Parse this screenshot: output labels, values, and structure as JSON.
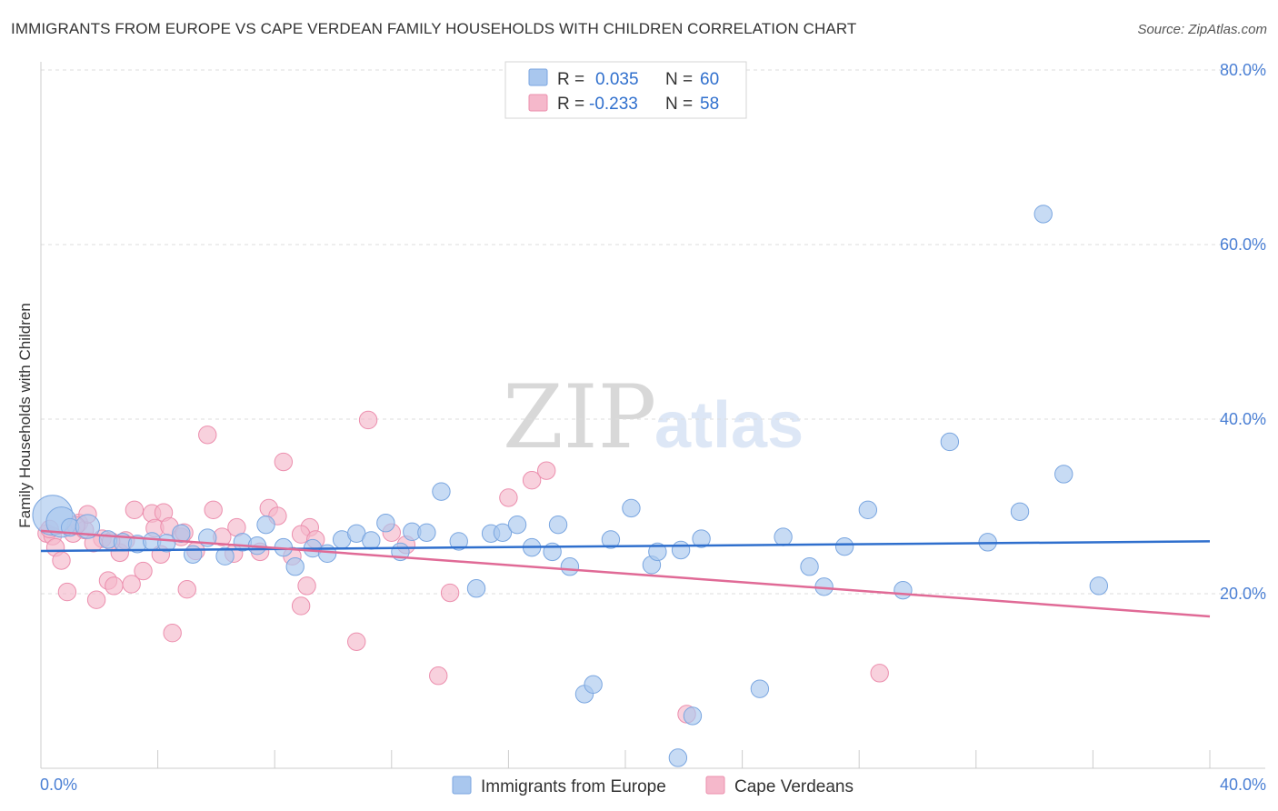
{
  "header": {
    "title": "IMMIGRANTS FROM EUROPE VS CAPE VERDEAN FAMILY HOUSEHOLDS WITH CHILDREN CORRELATION CHART",
    "source": "Source: ZipAtlas.com"
  },
  "watermark": {
    "zip": "ZIP",
    "atlas": "atlas"
  },
  "colors": {
    "blue_fill": "#a9c7ee",
    "blue_stroke": "#7aa6e0",
    "blue_line": "#2f6fcd",
    "pink_fill": "#f5b8cb",
    "pink_stroke": "#ec8fae",
    "pink_line": "#e06a96",
    "axis_text": "#4a7fd4",
    "grid": "#dddddd"
  },
  "stats_legend": {
    "rows": [
      {
        "r_label": "R =",
        "r_value": "0.035",
        "n_label": "N =",
        "n_value": "60"
      },
      {
        "r_label": "R =",
        "r_value": "-0.233",
        "n_label": "N =",
        "n_value": "58"
      }
    ]
  },
  "chart_data": {
    "type": "scatter",
    "title": "IMMIGRANTS FROM EUROPE VS CAPE VERDEAN FAMILY HOUSEHOLDS WITH CHILDREN CORRELATION CHART",
    "xlabel": "",
    "ylabel": "Family Households with Children",
    "xlim": [
      0,
      40
    ],
    "ylim": [
      0,
      80
    ],
    "x_tick_labels": [
      "0.0%",
      "40.0%"
    ],
    "y_ticks": [
      20,
      40,
      60,
      80
    ],
    "y_tick_labels": [
      "20.0%",
      "40.0%",
      "60.0%",
      "80.0%"
    ],
    "legend": [
      "Immigrants from Europe",
      "Cape Verdeans"
    ],
    "series": [
      {
        "name": "Immigrants from Europe",
        "r": 0.035,
        "n": 60,
        "trend": {
          "x": [
            0,
            40
          ],
          "y": [
            24.9,
            26.0
          ]
        },
        "points": [
          [
            0.4,
            29.0,
            24
          ],
          [
            0.7,
            28.2,
            18
          ],
          [
            1.0,
            27.6,
            10
          ],
          [
            1.6,
            27.7,
            14
          ],
          [
            2.3,
            26.2,
            10
          ],
          [
            2.8,
            25.9,
            10
          ],
          [
            3.3,
            25.7,
            10
          ],
          [
            3.8,
            26.0,
            10
          ],
          [
            4.3,
            25.8,
            10
          ],
          [
            4.8,
            26.9,
            10
          ],
          [
            5.2,
            24.5,
            10
          ],
          [
            5.7,
            26.4,
            10
          ],
          [
            6.3,
            24.3,
            10
          ],
          [
            6.9,
            25.9,
            10
          ],
          [
            7.4,
            25.5,
            10
          ],
          [
            7.7,
            27.9,
            10
          ],
          [
            8.3,
            25.3,
            10
          ],
          [
            8.7,
            23.1,
            10
          ],
          [
            9.3,
            25.2,
            10
          ],
          [
            9.8,
            24.6,
            10
          ],
          [
            10.3,
            26.2,
            10
          ],
          [
            10.8,
            26.9,
            10
          ],
          [
            11.3,
            26.1,
            10
          ],
          [
            11.8,
            28.1,
            10
          ],
          [
            12.3,
            24.8,
            10
          ],
          [
            12.7,
            27.1,
            10
          ],
          [
            13.2,
            27.0,
            10
          ],
          [
            13.7,
            31.7,
            10
          ],
          [
            14.3,
            26.0,
            10
          ],
          [
            14.9,
            20.6,
            10
          ],
          [
            15.4,
            26.9,
            10
          ],
          [
            15.8,
            27.0,
            10
          ],
          [
            16.3,
            27.9,
            10
          ],
          [
            16.8,
            25.3,
            10
          ],
          [
            17.5,
            24.8,
            10
          ],
          [
            17.7,
            27.9,
            10
          ],
          [
            18.1,
            23.1,
            10
          ],
          [
            18.6,
            8.5,
            10
          ],
          [
            18.9,
            9.6,
            10
          ],
          [
            19.5,
            26.2,
            10
          ],
          [
            20.2,
            29.8,
            10
          ],
          [
            20.9,
            23.3,
            10
          ],
          [
            21.1,
            24.8,
            10
          ],
          [
            21.8,
            1.2,
            10
          ],
          [
            21.9,
            25.0,
            10
          ],
          [
            22.3,
            6.0,
            10
          ],
          [
            22.6,
            26.3,
            10
          ],
          [
            24.6,
            9.1,
            10
          ],
          [
            25.4,
            26.5,
            10
          ],
          [
            26.3,
            23.1,
            10
          ],
          [
            26.8,
            20.8,
            10
          ],
          [
            27.5,
            25.4,
            10
          ],
          [
            28.3,
            29.6,
            10
          ],
          [
            29.5,
            20.4,
            10
          ],
          [
            31.1,
            37.4,
            10
          ],
          [
            32.4,
            25.9,
            10
          ],
          [
            33.5,
            29.4,
            10
          ],
          [
            34.3,
            63.5,
            10
          ],
          [
            35.0,
            33.7,
            10
          ],
          [
            36.2,
            20.9,
            10
          ]
        ]
      },
      {
        "name": "Cape Verdeans",
        "r": -0.233,
        "n": 58,
        "trend": {
          "x": [
            0,
            40
          ],
          "y": [
            27.2,
            17.4
          ]
        },
        "points": [
          [
            0.2,
            26.9,
            10
          ],
          [
            0.4,
            26.6,
            10
          ],
          [
            0.5,
            25.3,
            10
          ],
          [
            0.7,
            23.8,
            10
          ],
          [
            0.9,
            20.2,
            10
          ],
          [
            1.1,
            26.9,
            10
          ],
          [
            1.3,
            28.1,
            10
          ],
          [
            1.5,
            27.3,
            10
          ],
          [
            1.6,
            29.1,
            10
          ],
          [
            1.9,
            19.3,
            10
          ],
          [
            2.1,
            26.3,
            10
          ],
          [
            2.3,
            21.5,
            10
          ],
          [
            2.5,
            20.9,
            10
          ],
          [
            2.7,
            24.7,
            10
          ],
          [
            2.9,
            26.1,
            10
          ],
          [
            3.1,
            21.1,
            10
          ],
          [
            3.2,
            29.6,
            10
          ],
          [
            3.5,
            22.6,
            10
          ],
          [
            3.8,
            29.2,
            10
          ],
          [
            3.9,
            27.5,
            10
          ],
          [
            4.1,
            24.5,
            10
          ],
          [
            4.2,
            29.3,
            10
          ],
          [
            4.4,
            27.7,
            10
          ],
          [
            4.5,
            15.5,
            10
          ],
          [
            4.8,
            26.5,
            10
          ],
          [
            5.0,
            20.5,
            10
          ],
          [
            5.3,
            24.9,
            10
          ],
          [
            5.7,
            38.2,
            10
          ],
          [
            5.9,
            29.6,
            10
          ],
          [
            6.2,
            26.5,
            10
          ],
          [
            6.7,
            27.6,
            10
          ],
          [
            7.5,
            24.8,
            10
          ],
          [
            7.8,
            29.8,
            10
          ],
          [
            8.1,
            28.9,
            10
          ],
          [
            8.3,
            35.1,
            10
          ],
          [
            8.6,
            24.3,
            10
          ],
          [
            8.9,
            18.6,
            10
          ],
          [
            9.1,
            20.9,
            10
          ],
          [
            9.2,
            27.6,
            10
          ],
          [
            8.9,
            26.8,
            10
          ],
          [
            10.8,
            14.5,
            10
          ],
          [
            11.2,
            39.9,
            10
          ],
          [
            12.0,
            27.0,
            10
          ],
          [
            12.5,
            25.6,
            10
          ],
          [
            13.6,
            10.6,
            10
          ],
          [
            14.0,
            20.1,
            10
          ],
          [
            16.0,
            31.0,
            10
          ],
          [
            16.8,
            33.0,
            10
          ],
          [
            17.3,
            34.1,
            10
          ],
          [
            22.1,
            6.2,
            10
          ],
          [
            28.7,
            10.9,
            10
          ],
          [
            1.2,
            27.8,
            10
          ],
          [
            2.4,
            26.0,
            10
          ],
          [
            4.9,
            27.0,
            10
          ],
          [
            6.6,
            24.6,
            10
          ],
          [
            0.3,
            27.4,
            10
          ],
          [
            9.4,
            26.2,
            10
          ],
          [
            1.8,
            25.8,
            10
          ]
        ]
      }
    ]
  }
}
